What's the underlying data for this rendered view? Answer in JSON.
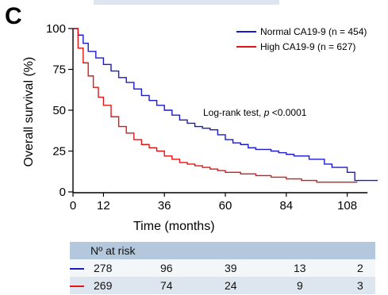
{
  "panel_label": "C",
  "chart_data": {
    "type": "line",
    "subtype": "kaplan-meier",
    "xlabel": "Time (months)",
    "ylabel": "Overall survival (%)",
    "xlim": [
      0,
      120
    ],
    "ylim": [
      0,
      100
    ],
    "xticks": [
      "0",
      "12",
      "36",
      "60",
      "84",
      "108"
    ],
    "xtick_values": [
      0,
      12,
      36,
      60,
      84,
      108
    ],
    "yticks": [
      "0",
      "25",
      "50",
      "75",
      "100"
    ],
    "ytick_values": [
      0,
      25,
      50,
      75,
      100
    ],
    "grid": false,
    "legend_position": "top-right",
    "annotation": {
      "prefix": "Log-rank test, ",
      "italic": "p",
      "suffix": " <0.0001"
    },
    "series": [
      {
        "name": "Normal CA19-9 (n = 454)",
        "color": "#1a1acc",
        "points": [
          [
            0,
            100
          ],
          [
            2,
            96
          ],
          [
            4,
            91
          ],
          [
            6,
            86
          ],
          [
            9,
            82
          ],
          [
            12,
            78
          ],
          [
            15,
            74
          ],
          [
            18,
            70
          ],
          [
            21,
            67
          ],
          [
            24,
            63
          ],
          [
            27,
            59
          ],
          [
            30,
            56
          ],
          [
            33,
            53
          ],
          [
            36,
            50
          ],
          [
            39,
            47
          ],
          [
            42,
            44
          ],
          [
            45,
            42
          ],
          [
            48,
            40
          ],
          [
            51,
            39
          ],
          [
            54,
            38
          ],
          [
            57,
            35
          ],
          [
            60,
            32
          ],
          [
            63,
            30
          ],
          [
            66,
            29
          ],
          [
            69,
            27
          ],
          [
            72,
            26
          ],
          [
            75,
            26
          ],
          [
            78,
            25
          ],
          [
            81,
            24
          ],
          [
            84,
            23
          ],
          [
            87,
            22
          ],
          [
            90,
            22
          ],
          [
            93,
            20
          ],
          [
            96,
            20
          ],
          [
            99,
            17
          ],
          [
            102,
            15
          ],
          [
            105,
            15
          ],
          [
            108,
            12
          ],
          [
            111,
            7
          ],
          [
            114,
            7
          ],
          [
            120,
            7
          ]
        ]
      },
      {
        "name": "High CA19-9 (n = 627)",
        "color": "#e01515",
        "points": [
          [
            0,
            100
          ],
          [
            2,
            88
          ],
          [
            4,
            79
          ],
          [
            6,
            71
          ],
          [
            8,
            64
          ],
          [
            10,
            58
          ],
          [
            12,
            53
          ],
          [
            15,
            46
          ],
          [
            18,
            40
          ],
          [
            21,
            36
          ],
          [
            24,
            32
          ],
          [
            27,
            29
          ],
          [
            30,
            27
          ],
          [
            33,
            25
          ],
          [
            36,
            22
          ],
          [
            39,
            20
          ],
          [
            42,
            18
          ],
          [
            45,
            17
          ],
          [
            48,
            16
          ],
          [
            51,
            15
          ],
          [
            54,
            14
          ],
          [
            57,
            13
          ],
          [
            60,
            12
          ],
          [
            66,
            11
          ],
          [
            72,
            10
          ],
          [
            78,
            9
          ],
          [
            84,
            8
          ],
          [
            90,
            7
          ],
          [
            96,
            6
          ],
          [
            102,
            6
          ],
          [
            108,
            6
          ],
          [
            112,
            6
          ]
        ]
      }
    ]
  },
  "at_risk": {
    "header": "Nº at risk",
    "rows": [
      {
        "color": "#1a1acc",
        "values": [
          "278",
          "96",
          "39",
          "13",
          "2"
        ]
      },
      {
        "color": "#e01515",
        "values": [
          "269",
          "74",
          "24",
          "9",
          "3"
        ]
      }
    ]
  }
}
